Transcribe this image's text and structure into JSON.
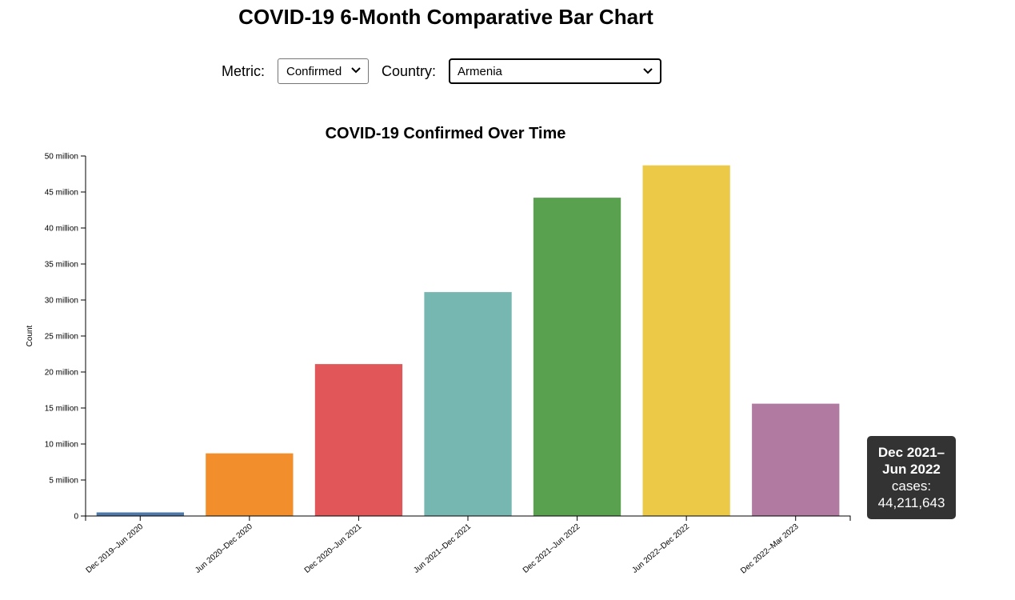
{
  "page_title": "COVID-19 6-Month Comparative Bar Chart",
  "controls": {
    "metric_label": "Metric:",
    "metric_value": "Confirmed",
    "country_label": "Country:",
    "country_value": "Armenia"
  },
  "tooltip": {
    "period_line1": "Dec 2021–",
    "period_line2": "Jun 2022",
    "metric_line": "cases:",
    "value_line": "44,211,643"
  },
  "chart_data": {
    "type": "bar",
    "title": "COVID-19 Confirmed Over Time",
    "ylabel": "Count",
    "xlabel": "",
    "ylim": [
      0,
      50000000
    ],
    "yticks": [
      0,
      5000000,
      10000000,
      15000000,
      20000000,
      25000000,
      30000000,
      35000000,
      40000000,
      45000000,
      50000000
    ],
    "ytick_labels": [
      "0",
      "5 million",
      "10 million",
      "15 million",
      "20 million",
      "25 million",
      "30 million",
      "35 million",
      "40 million",
      "45 million",
      "50 million"
    ],
    "categories": [
      "Dec 2019–Jun 2020",
      "Jun 2020–Dec 2020",
      "Dec 2020–Jun 2021",
      "Jun 2021–Dec 2021",
      "Dec 2021–Jun 2022",
      "Jun 2022–Dec 2022",
      "Dec 2022–Mar 2023"
    ],
    "values": [
      500000,
      8700000,
      21100000,
      31100000,
      44211643,
      48700000,
      15600000
    ],
    "colors": [
      "#4e79a7",
      "#f28e2b",
      "#e15759",
      "#76b7b2",
      "#59a14f",
      "#edc948",
      "#b07aa1"
    ],
    "grid": false,
    "legend": "none"
  }
}
